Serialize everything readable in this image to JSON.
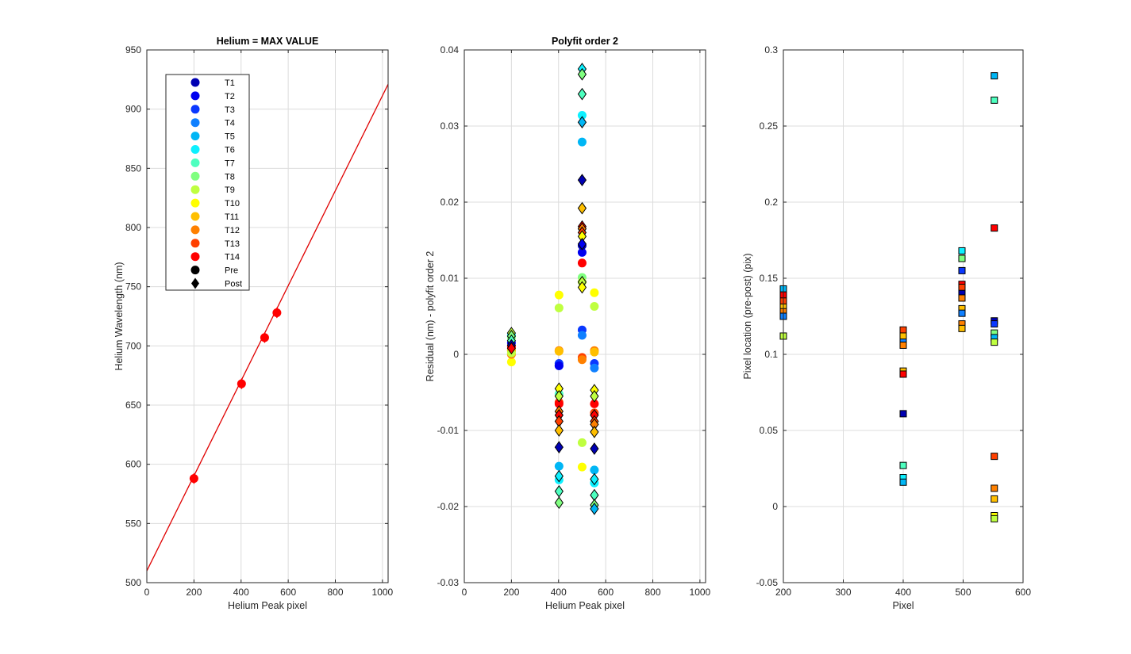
{
  "chart_data": [
    {
      "type": "scatter",
      "title": "Helium = MAX VALUE",
      "xlabel": "Helium Peak pixel",
      "ylabel": "Helium Wavelength (nm)",
      "xlim": [
        0,
        1024
      ],
      "ylim": [
        500,
        950
      ],
      "xticks": [
        "0",
        "200",
        "400",
        "600",
        "800",
        "1000"
      ],
      "yticks": [
        "500",
        "550",
        "600",
        "650",
        "700",
        "750",
        "800",
        "850",
        "900",
        "950"
      ],
      "grid": true,
      "fit_line": {
        "x": [
          0,
          1024
        ],
        "y": [
          510,
          921
        ],
        "color": "#e00000"
      },
      "points": {
        "x": [
          200,
          402,
          500,
          552
        ],
        "y": [
          588,
          668,
          707,
          728
        ],
        "color": "#ff0000"
      },
      "legend": {
        "placement": "top-left",
        "entries": [
          {
            "label": "T1",
            "color": "#0000b3",
            "marker": "circle"
          },
          {
            "label": "T2",
            "color": "#0000ef",
            "marker": "circle"
          },
          {
            "label": "T3",
            "color": "#0a38ff",
            "marker": "circle"
          },
          {
            "label": "T4",
            "color": "#0f80ff",
            "marker": "circle"
          },
          {
            "label": "T5",
            "color": "#00b6f5",
            "marker": "circle"
          },
          {
            "label": "T6",
            "color": "#0df0ff",
            "marker": "circle"
          },
          {
            "label": "T7",
            "color": "#4dffbf",
            "marker": "circle"
          },
          {
            "label": "T8",
            "color": "#80ff80",
            "marker": "circle"
          },
          {
            "label": "T9",
            "color": "#bfff40",
            "marker": "circle"
          },
          {
            "label": "T10",
            "color": "#ffff00",
            "marker": "circle"
          },
          {
            "label": "T11",
            "color": "#ffbf00",
            "marker": "circle"
          },
          {
            "label": "T12",
            "color": "#ff8000",
            "marker": "circle"
          },
          {
            "label": "T13",
            "color": "#ff4000",
            "marker": "circle"
          },
          {
            "label": "T14",
            "color": "#ff0000",
            "marker": "circle"
          },
          {
            "label": "Pre",
            "color": "#000000",
            "marker": "circle"
          },
          {
            "label": "Post",
            "color": "#000000",
            "marker": "diamond"
          }
        ]
      }
    },
    {
      "type": "scatter",
      "title": "Polyfit order 2",
      "xlabel": "Helium Peak pixel",
      "ylabel": "Residual (nm) - polyfit order 2",
      "xlim": [
        0,
        1024
      ],
      "ylim": [
        -0.03,
        0.04
      ],
      "xticks": [
        "0",
        "200",
        "400",
        "600",
        "800",
        "1000"
      ],
      "yticks": [
        "-0.03",
        "-0.02",
        "-0.01",
        "0",
        "0.01",
        "0.02",
        "0.03",
        "0.04"
      ],
      "grid": true,
      "pre_series": [
        {
          "x": 200,
          "y": [
            0.0015,
            0.0025,
            0.0022,
            0.0005,
            -0.001,
            0.0,
            0.0005,
            0.001,
            0.0002
          ],
          "colors": [
            "#0000ef",
            "#0df0ff",
            "#80ff80",
            "#ff4000",
            "#ffff00",
            "#ff8000",
            "#ffbf00",
            "#ff0000",
            "#bfff40"
          ]
        },
        {
          "x": 402,
          "y": [
            -0.0012,
            -0.0015,
            -0.0015,
            0.0005,
            0.0004,
            -0.0063,
            -0.0065,
            -0.0052,
            -0.0147,
            -0.0165,
            0.0078,
            0.0061
          ],
          "colors": [
            "#0a38ff",
            "#0f80ff",
            "#0000ef",
            "#ff8000",
            "#ffbf00",
            "#ff4000",
            "#ff0000",
            "#4dffbf",
            "#00b6f5",
            "#0df0ff",
            "#ffff00",
            "#bfff40"
          ]
        },
        {
          "x": 500,
          "y": [
            0.0314,
            0.0279,
            0.0134,
            0.0143,
            0.012,
            0.0101,
            0.0095,
            0.0032,
            0.0025,
            -0.0004,
            -0.0007,
            -0.0116,
            -0.0148
          ],
          "colors": [
            "#0df0ff",
            "#00b6f5",
            "#0000ef",
            "#0000b3",
            "#ff0000",
            "#80ff80",
            "#bfff40",
            "#0a38ff",
            "#0f80ff",
            "#ff4000",
            "#ff8000",
            "#bfff40",
            "#ffff00"
          ]
        },
        {
          "x": 552,
          "y": [
            0.0081,
            0.0063,
            0.0005,
            0.0003,
            -0.0012,
            -0.0018,
            -0.0065,
            -0.0077,
            -0.0152,
            -0.0169
          ],
          "colors": [
            "#ffff00",
            "#bfff40",
            "#ff8000",
            "#ffbf00",
            "#0a38ff",
            "#0f80ff",
            "#ff0000",
            "#ff4000",
            "#00b6f5",
            "#0df0ff"
          ]
        }
      ],
      "post_series": [
        {
          "x": 200,
          "y": [
            0.0028,
            0.0024,
            0.0018,
            0.0012,
            0.0008
          ],
          "colors": [
            "#bfff40",
            "#80ff80",
            "#4dffbf",
            "#0000b3",
            "#ff0000"
          ]
        },
        {
          "x": 402,
          "y": [
            -0.0045,
            -0.0055,
            -0.0075,
            -0.008,
            -0.0088,
            -0.01,
            -0.0122,
            -0.016,
            -0.018,
            -0.0195
          ],
          "colors": [
            "#ffff00",
            "#bfff40",
            "#ff8000",
            "#ff0000",
            "#ff4000",
            "#ffbf00",
            "#0000b3",
            "#0df0ff",
            "#4dffbf",
            "#80ff80"
          ]
        },
        {
          "x": 500,
          "y": [
            0.0375,
            0.0368,
            0.0342,
            0.0305,
            0.0229,
            0.0192,
            0.0168,
            0.0165,
            0.016,
            0.0155,
            0.0145,
            0.0095,
            0.0088
          ],
          "colors": [
            "#0df0ff",
            "#80ff80",
            "#4dffbf",
            "#00b6f5",
            "#0000b3",
            "#ffbf00",
            "#ff0000",
            "#ff8000",
            "#ff4000",
            "#ffff00",
            "#0000ef",
            "#bfff40",
            "#ffff00"
          ]
        },
        {
          "x": 552,
          "y": [
            -0.0047,
            -0.0055,
            -0.008,
            -0.0088,
            -0.0092,
            -0.0102,
            -0.0124,
            -0.0164,
            -0.0185,
            -0.0198,
            -0.0203
          ],
          "colors": [
            "#ffff00",
            "#bfff40",
            "#ff0000",
            "#ff4000",
            "#ff8000",
            "#ffbf00",
            "#0000b3",
            "#0df0ff",
            "#4dffbf",
            "#80ff80",
            "#00b6f5"
          ]
        }
      ]
    },
    {
      "type": "scatter",
      "title": "",
      "xlabel": "Pixel",
      "ylabel": "Pixel location (pre-post) (pix)",
      "xlim": [
        200,
        600
      ],
      "ylim": [
        -0.05,
        0.3
      ],
      "xticks": [
        "200",
        "300",
        "400",
        "500",
        "600"
      ],
      "yticks": [
        "-0.05",
        "0",
        "0.05",
        "0.1",
        "0.15",
        "0.2",
        "0.25",
        "0.3"
      ],
      "grid": true,
      "series": [
        {
          "x": 200,
          "y": [
            0.143,
            0.139,
            0.135,
            0.131,
            0.128,
            0.125,
            0.112
          ],
          "colors": [
            "#00b6f5",
            "#ff0000",
            "#ff4000",
            "#ffbf00",
            "#ff8000",
            "#0f80ff",
            "#bfff40"
          ]
        },
        {
          "x": 400,
          "y": [
            0.116,
            0.112,
            0.108,
            0.106,
            0.089,
            0.087,
            0.061,
            0.027,
            0.019,
            0.016
          ],
          "colors": [
            "#ff4000",
            "#ffbf00",
            "#0f80ff",
            "#ff8000",
            "#ffbf00",
            "#ff0000",
            "#0000b3",
            "#4dffbf",
            "#0df0ff",
            "#00b6f5"
          ]
        },
        {
          "x": 498,
          "y": [
            0.168,
            0.163,
            0.155,
            0.146,
            0.144,
            0.14,
            0.137,
            0.13,
            0.127,
            0.12,
            0.117
          ],
          "colors": [
            "#0df0ff",
            "#80ff80",
            "#0a38ff",
            "#ff0000",
            "#ff4000",
            "#0000b3",
            "#ff8000",
            "#ffbf00",
            "#0f80ff",
            "#ff8000",
            "#ffbf00"
          ]
        },
        {
          "x": 552,
          "y": [
            0.283,
            0.267,
            0.183,
            0.122,
            0.12,
            0.114,
            0.111,
            0.108,
            0.033,
            0.012,
            0.005,
            -0.006,
            -0.008
          ],
          "colors": [
            "#00b6f5",
            "#4dffbf",
            "#ff0000",
            "#0000b3",
            "#0a38ff",
            "#80ff80",
            "#00b6f5",
            "#bfff40",
            "#ff4000",
            "#ff8000",
            "#ffbf00",
            "#ffff00",
            "#bfff40"
          ]
        }
      ]
    }
  ]
}
